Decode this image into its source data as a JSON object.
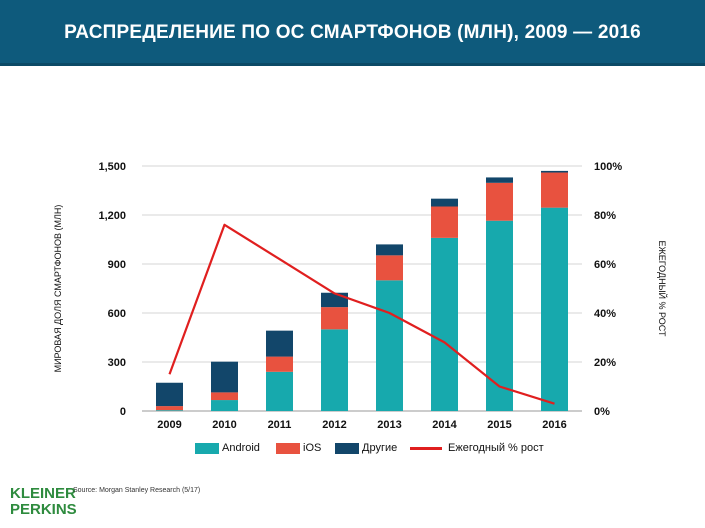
{
  "header": {
    "title": "РАСПРЕДЕЛЕНИЕ ПО ОС СМАРТФОНОВ (МЛН), 2009 — 2016"
  },
  "colors": {
    "android": "#17a9ad",
    "ios": "#e8523f",
    "other": "#12466a",
    "growth": "#e01f1f",
    "header_bg": "#0e5a7c",
    "logo": "#2e8b3e"
  },
  "chart_data": {
    "type": "bar",
    "stacked": true,
    "categories": [
      "2009",
      "2010",
      "2011",
      "2012",
      "2013",
      "2014",
      "2015",
      "2016"
    ],
    "series": [
      {
        "name": "Android",
        "values": [
          5,
          67,
          240,
          500,
          800,
          1060,
          1165,
          1245
        ]
      },
      {
        "name": "iOS",
        "values": [
          25,
          47,
          93,
          136,
          153,
          192,
          232,
          215
        ]
      },
      {
        "name": "Другие",
        "values": [
          143,
          188,
          159,
          88,
          67,
          48,
          33,
          10
        ]
      }
    ],
    "line_series": {
      "name": "Ежегодный % рост",
      "axis": "right",
      "values": [
        15,
        76,
        62,
        48,
        40,
        28,
        10,
        3
      ]
    },
    "y_left": {
      "label": "МИРОВАЯ ДОЛЯ СМАРТФОНОВ (МЛН)",
      "ylim": [
        0,
        1500
      ],
      "ticks": [
        "0",
        "300",
        "600",
        "900",
        "1,200",
        "1,500"
      ],
      "tick_values": [
        0,
        300,
        600,
        900,
        1200,
        1500
      ]
    },
    "y_right": {
      "label": "ЕЖЕГОДНЫЙ % РОСТ",
      "ylim": [
        0,
        100
      ],
      "ticks": [
        "0%",
        "20%",
        "40%",
        "60%",
        "80%",
        "100%"
      ],
      "tick_values": [
        0,
        20,
        40,
        60,
        80,
        100
      ]
    },
    "grid": true,
    "legend_position": "bottom"
  },
  "legend": [
    {
      "label": "Android",
      "kind": "bar",
      "color": "#17a9ad"
    },
    {
      "label": "iOS",
      "kind": "bar",
      "color": "#e8523f"
    },
    {
      "label": "Другие",
      "kind": "bar",
      "color": "#12466a"
    },
    {
      "label": "Ежегодный % рост",
      "kind": "line",
      "color": "#e01f1f"
    }
  ],
  "footer": {
    "logo_line1": "KLEINER",
    "logo_line2": "PERKINS",
    "source": "Source: Morgan Stanley Research (5/17)"
  }
}
